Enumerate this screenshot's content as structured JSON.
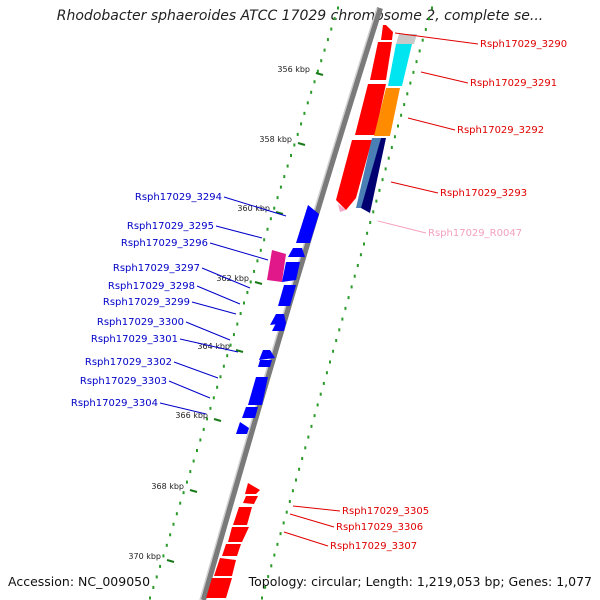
{
  "title": "Rhodobacter sphaeroides ATCC 17029 chromosome 2, complete se...",
  "footer": {
    "accession": "Accession: NC_009050",
    "summary": "Topology: circular; Length: 1,219,053 bp; Genes: 1,077"
  },
  "ticks": [
    "356 kbp",
    "358 kbp",
    "360 kbp",
    "362 kbp",
    "364 kbp",
    "366 kbp",
    "368 kbp",
    "370 kbp"
  ],
  "genes_right": [
    {
      "label": "Rsph17029_3290",
      "color": "#e00000"
    },
    {
      "label": "Rsph17029_3291",
      "color": "#e00000"
    },
    {
      "label": "Rsph17029_3292",
      "color": "#e00000"
    },
    {
      "label": "Rsph17029_3293",
      "color": "#e00000"
    },
    {
      "label": "Rsph17029_R0047",
      "color": "#f4a0c0"
    },
    {
      "label": "Rsph17029_3305",
      "color": "#e00000"
    },
    {
      "label": "Rsph17029_3306",
      "color": "#e00000"
    },
    {
      "label": "Rsph17029_3307",
      "color": "#e00000"
    }
  ],
  "genes_left": [
    {
      "label": "Rsph17029_3294",
      "color": "#0000c8"
    },
    {
      "label": "Rsph17029_3295",
      "color": "#0000c8"
    },
    {
      "label": "Rsph17029_3296",
      "color": "#0000c8"
    },
    {
      "label": "Rsph17029_3297",
      "color": "#0000c8"
    },
    {
      "label": "Rsph17029_3298",
      "color": "#0000c8"
    },
    {
      "label": "Rsph17029_3299",
      "color": "#0000c8"
    },
    {
      "label": "Rsph17029_3300",
      "color": "#0000c8"
    },
    {
      "label": "Rsph17029_3301",
      "color": "#0000c8"
    },
    {
      "label": "Rsph17029_3302",
      "color": "#0000c8"
    },
    {
      "label": "Rsph17029_3303",
      "color": "#0000c8"
    },
    {
      "label": "Rsph17029_3304",
      "color": "#0000c8"
    }
  ],
  "colors": {
    "forward": "#ff0000",
    "reverse": "#0000ff",
    "gc_dots": "#2a9a2a",
    "backbone": "#7a7a7a",
    "cyan": "#00e5f0",
    "orange": "#ff8c00",
    "steel": "#4a7fb5",
    "navy": "#000070",
    "magenta": "#e0188a",
    "grey": "#c8c8c8"
  }
}
